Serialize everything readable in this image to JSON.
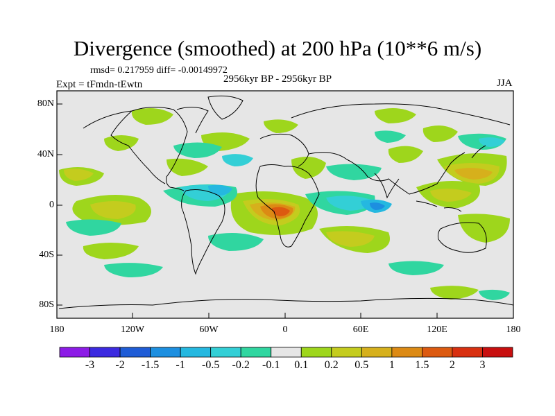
{
  "title": "Divergence (smoothed) at 200 hPa (10**6 m/s)",
  "stats": "rmsd= 0.217959  diff= -0.00149972",
  "period": "2956kyr BP - 2956kyr BP",
  "experiment": "Expt = tFmdn-tEwtn",
  "season": "JJA",
  "map": {
    "projection": "cylindrical-equidistant",
    "background_color": "#e6e6e6",
    "lat_labels": [
      "80N",
      "40N",
      "0",
      "40S",
      "80S"
    ],
    "lon_labels": [
      "180",
      "120W",
      "60W",
      "0",
      "60E",
      "120E",
      "180"
    ]
  },
  "colorbar": {
    "colors": [
      "#8c1be6",
      "#3c2ae0",
      "#1f5cd6",
      "#1d8fe0",
      "#25b8e0",
      "#33cfd6",
      "#30d6a0",
      "#e6e6e6",
      "#9ed61c",
      "#c4cc1e",
      "#d6b01c",
      "#dc8a14",
      "#dc5a10",
      "#d83010",
      "#c80f0f"
    ],
    "labels": [
      "-3",
      "-2",
      "-1.5",
      "-1",
      "-0.5",
      "-0.2",
      "-0.1",
      "0.1",
      "0.2",
      "0.5",
      "1",
      "1.5",
      "2",
      "3"
    ]
  }
}
